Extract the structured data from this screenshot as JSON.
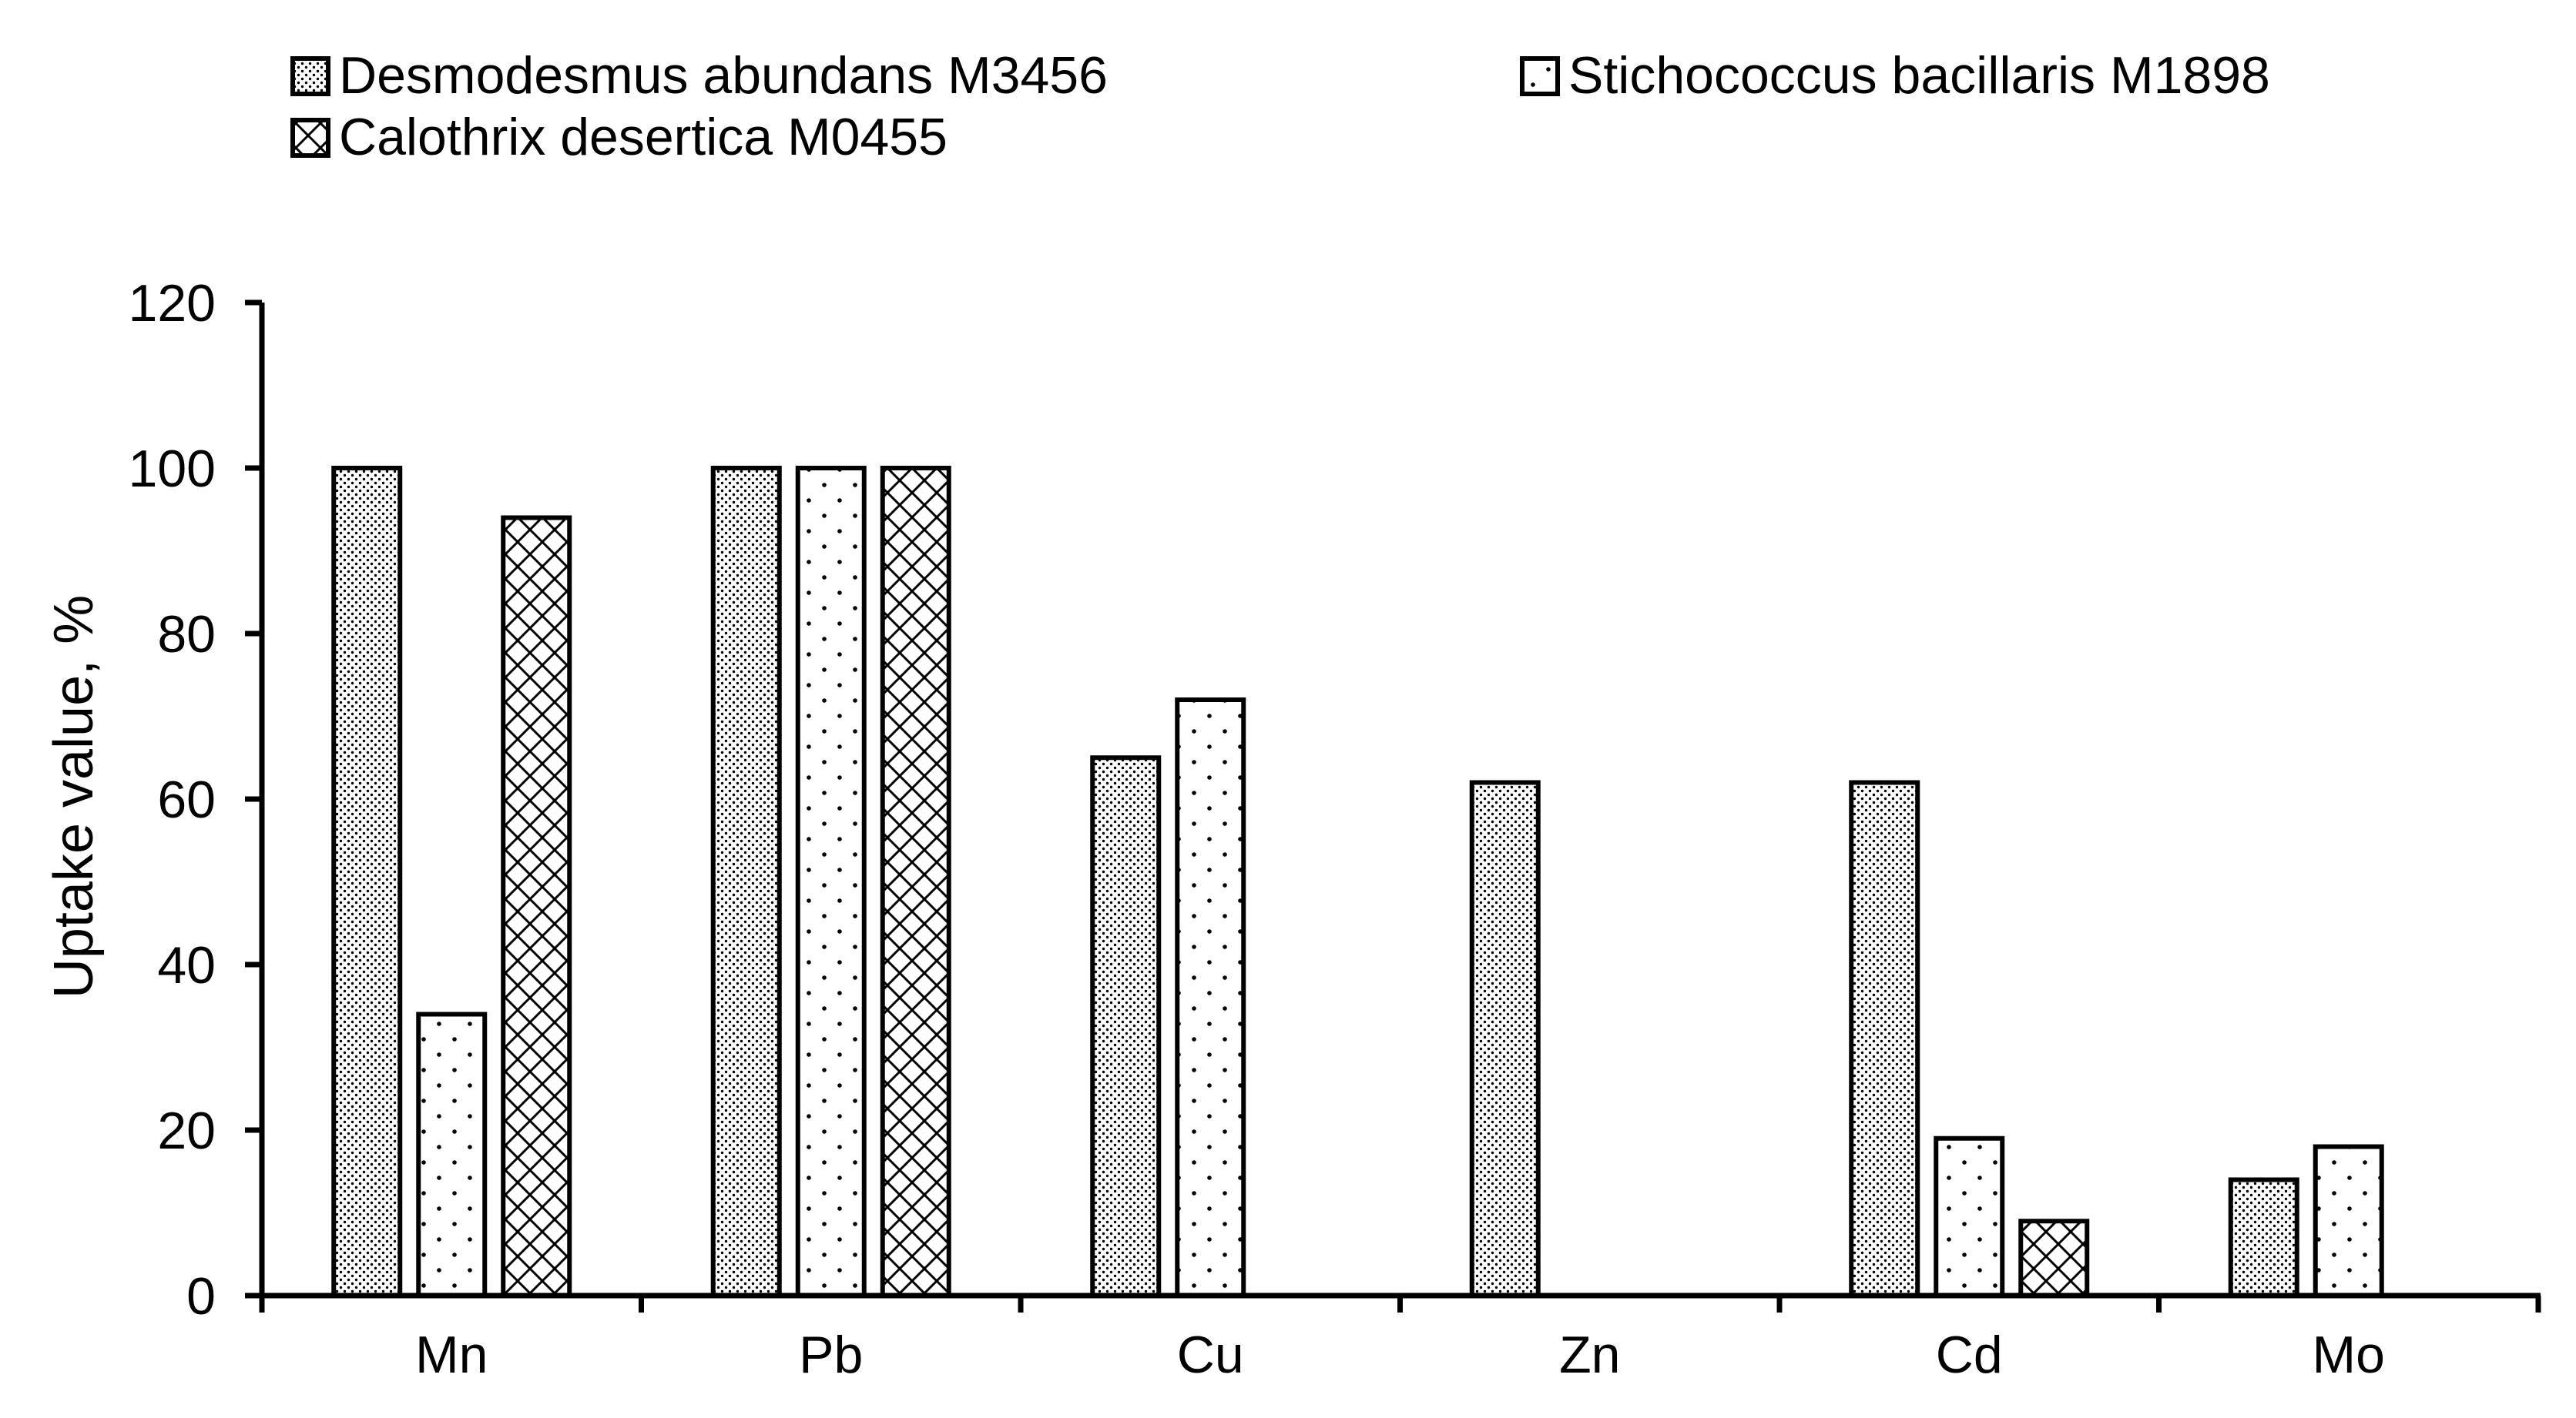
{
  "chart_data": {
    "type": "bar",
    "title": "",
    "xlabel": "",
    "ylabel": "Uptake value, %",
    "ylim": [
      0,
      120
    ],
    "yticks": [
      0,
      20,
      40,
      60,
      80,
      100,
      120
    ],
    "categories": [
      "Mn",
      "Pb",
      "Cu",
      "Zn",
      "Cd",
      "Mo"
    ],
    "series": [
      {
        "name": "Desmodesmus abundans M3456",
        "pattern": "dense-dots",
        "values": [
          100,
          100,
          65,
          62,
          62,
          14
        ]
      },
      {
        "name": "Stichococcus bacillaris M1898",
        "pattern": "sparse-dots",
        "values": [
          34,
          100,
          72,
          0,
          19,
          18
        ]
      },
      {
        "name": "Calothrix desertica M0455",
        "pattern": "crosshatch",
        "values": [
          94,
          100,
          0,
          0,
          9,
          0
        ]
      }
    ],
    "legend_position": "top",
    "grid": false,
    "colors": {
      "stroke": "#000000",
      "background": "#ffffff",
      "pattern_ink": "#000000"
    }
  }
}
